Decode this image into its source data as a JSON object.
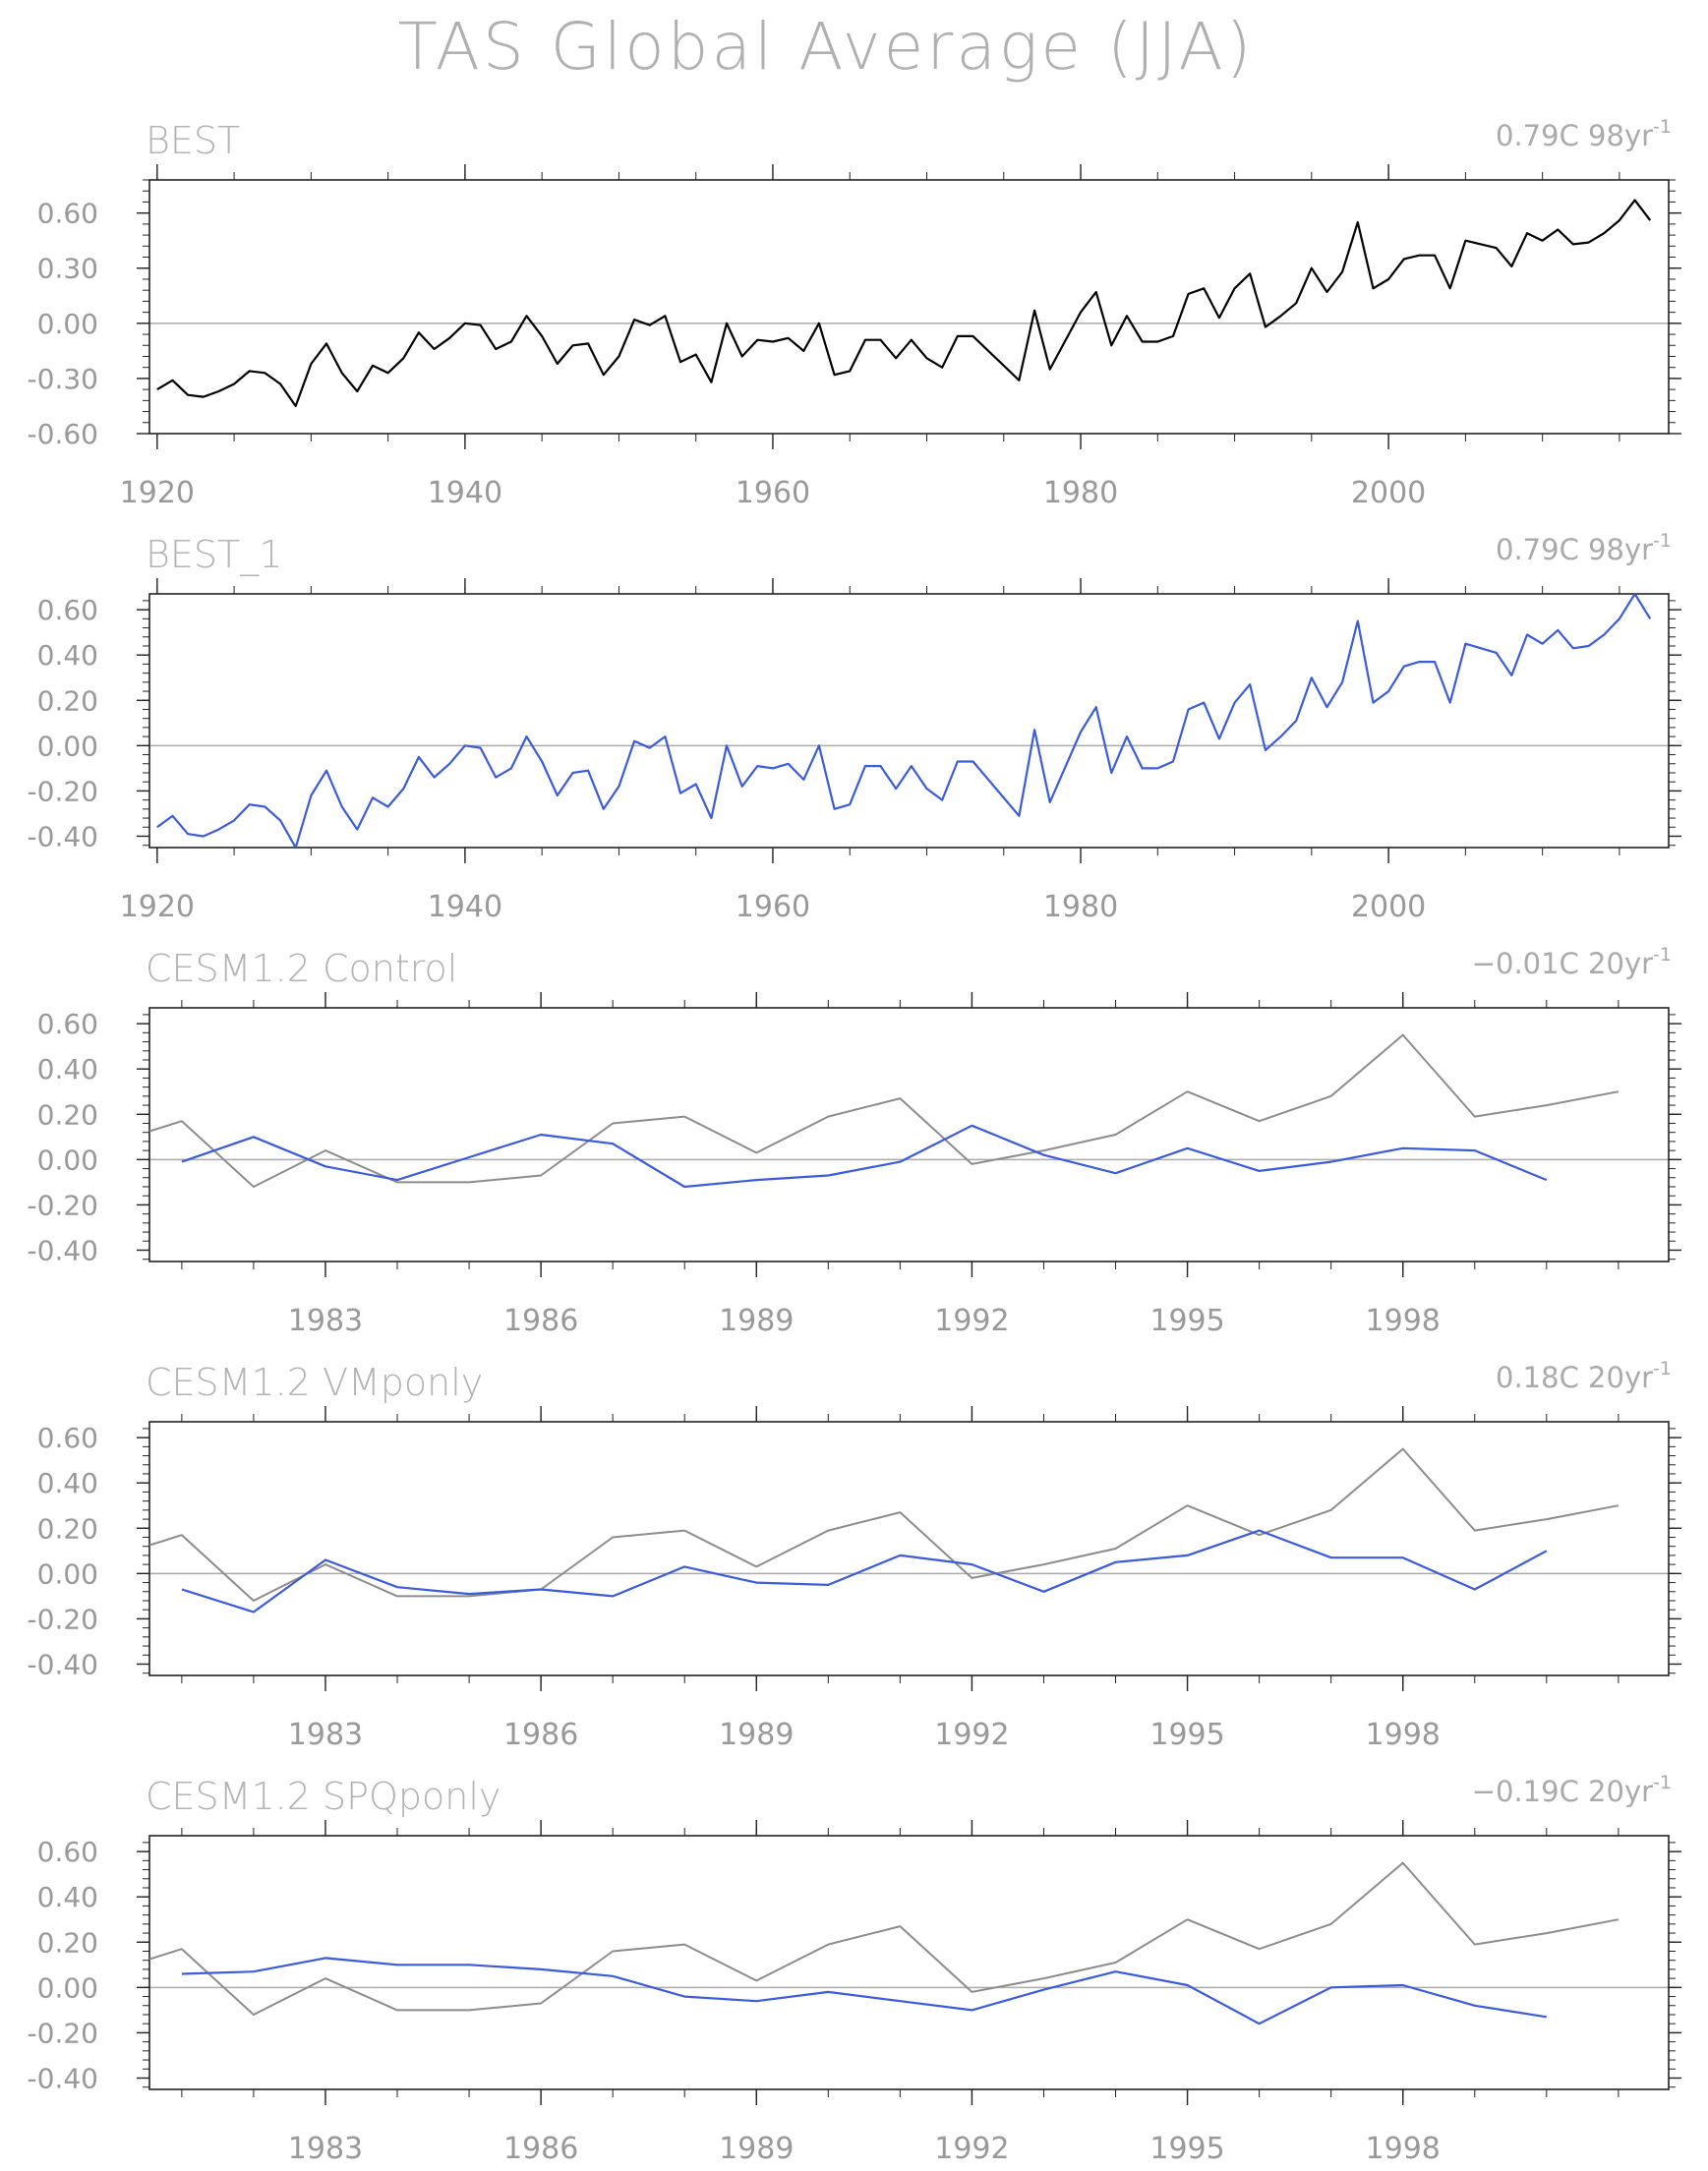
{
  "title": "TAS Global Average (JJA)",
  "colors": {
    "observed": "#000000",
    "observed_blue": "#3b5bdb",
    "reference_gray": "#8c8c8c",
    "model_blue": "#3b5bdb",
    "text": "#999999",
    "frame": "#222222",
    "zero_line": "#aaaaaa"
  },
  "chart_data": [
    {
      "type": "line",
      "panel_label": "BEST",
      "trend_label": "0.79C 98yr",
      "trend_exponent": "-1",
      "xlim": [
        1919.5,
        2018.2
      ],
      "ylim": [
        -0.6,
        0.78
      ],
      "yticks": [
        -0.6,
        -0.3,
        0.0,
        0.3,
        0.6
      ],
      "ytick_labels": [
        "-0.60",
        "-0.30",
        "0.00",
        "0.30",
        "0.60"
      ],
      "xticks": [
        1920,
        1940,
        1960,
        1980,
        2000
      ],
      "xtick_labels": [
        "1920",
        "1940",
        "1960",
        "1980",
        "2000"
      ],
      "zero_line": 0,
      "series": [
        {
          "color": "observed",
          "x": [
            1920,
            1921,
            1922,
            1923,
            1924,
            1925,
            1926,
            1927,
            1928,
            1929,
            1930,
            1931,
            1932,
            1933,
            1934,
            1935,
            1936,
            1937,
            1938,
            1939,
            1940,
            1941,
            1942,
            1943,
            1944,
            1945,
            1946,
            1947,
            1948,
            1949,
            1950,
            1951,
            1952,
            1953,
            1954,
            1955,
            1956,
            1957,
            1958,
            1959,
            1960,
            1961,
            1962,
            1963,
            1964,
            1965,
            1966,
            1967,
            1968,
            1969,
            1970,
            1971,
            1972,
            1973,
            1976,
            1977,
            1978,
            1980,
            1981,
            1982,
            1983,
            1984,
            1985,
            1986,
            1987,
            1988,
            1989,
            1990,
            1991,
            1992,
            1993,
            1994,
            1995,
            1996,
            1997,
            1998,
            1999,
            2000,
            2001,
            2002,
            2003,
            2004,
            2005,
            2007,
            2008,
            2009,
            2010,
            2011,
            2012,
            2013,
            2014,
            2015,
            2016,
            2017
          ],
          "y": [
            -0.36,
            -0.31,
            -0.39,
            -0.4,
            -0.37,
            -0.33,
            -0.26,
            -0.27,
            -0.33,
            -0.45,
            -0.22,
            -0.11,
            -0.27,
            -0.37,
            -0.23,
            -0.27,
            -0.19,
            -0.05,
            -0.14,
            -0.08,
            0.0,
            -0.01,
            -0.14,
            -0.1,
            0.04,
            -0.07,
            -0.22,
            -0.12,
            -0.11,
            -0.28,
            -0.18,
            0.02,
            -0.01,
            0.04,
            -0.21,
            -0.17,
            -0.32,
            0.0,
            -0.18,
            -0.09,
            -0.1,
            -0.08,
            -0.15,
            -0.0,
            -0.28,
            -0.26,
            -0.09,
            -0.09,
            -0.19,
            -0.09,
            -0.19,
            -0.24,
            -0.07,
            -0.07,
            -0.31,
            0.07,
            -0.25,
            0.06,
            0.17,
            -0.12,
            0.04,
            -0.1,
            -0.1,
            -0.07,
            0.16,
            0.19,
            0.03,
            0.19,
            0.27,
            -0.02,
            0.04,
            0.11,
            0.3,
            0.17,
            0.28,
            0.55,
            0.19,
            0.24,
            0.35,
            0.37,
            0.37,
            0.19,
            0.45,
            0.41,
            0.31,
            0.49,
            0.45,
            0.51,
            0.43,
            0.44,
            0.49,
            0.56,
            0.67,
            0.56
          ]
        }
      ]
    },
    {
      "type": "line",
      "panel_label": "BEST_1",
      "trend_label": "0.79C 98yr",
      "trend_exponent": "-1",
      "xlim": [
        1919.5,
        2018.2
      ],
      "ylim": [
        -0.45,
        0.67
      ],
      "yticks": [
        -0.4,
        -0.2,
        0.0,
        0.2,
        0.4,
        0.6
      ],
      "ytick_labels": [
        "-0.40",
        "-0.20",
        "0.00",
        "0.20",
        "0.40",
        "0.60"
      ],
      "xticks": [
        1920,
        1940,
        1960,
        1980,
        2000
      ],
      "xtick_labels": [
        "1920",
        "1940",
        "1960",
        "1980",
        "2000"
      ],
      "zero_line": 0,
      "series": [
        {
          "color": "observed_blue",
          "x": [
            1920,
            1921,
            1922,
            1923,
            1924,
            1925,
            1926,
            1927,
            1928,
            1929,
            1930,
            1931,
            1932,
            1933,
            1934,
            1935,
            1936,
            1937,
            1938,
            1939,
            1940,
            1941,
            1942,
            1943,
            1944,
            1945,
            1946,
            1947,
            1948,
            1949,
            1950,
            1951,
            1952,
            1953,
            1954,
            1955,
            1956,
            1957,
            1958,
            1959,
            1960,
            1961,
            1962,
            1963,
            1964,
            1965,
            1966,
            1967,
            1968,
            1969,
            1970,
            1971,
            1972,
            1973,
            1976,
            1977,
            1978,
            1980,
            1981,
            1982,
            1983,
            1984,
            1985,
            1986,
            1987,
            1988,
            1989,
            1990,
            1991,
            1992,
            1993,
            1994,
            1995,
            1996,
            1997,
            1998,
            1999,
            2000,
            2001,
            2002,
            2003,
            2004,
            2005,
            2007,
            2008,
            2009,
            2010,
            2011,
            2012,
            2013,
            2014,
            2015,
            2016,
            2017
          ],
          "y": [
            -0.36,
            -0.31,
            -0.39,
            -0.4,
            -0.37,
            -0.33,
            -0.26,
            -0.27,
            -0.33,
            -0.45,
            -0.22,
            -0.11,
            -0.27,
            -0.37,
            -0.23,
            -0.27,
            -0.19,
            -0.05,
            -0.14,
            -0.08,
            0.0,
            -0.01,
            -0.14,
            -0.1,
            0.04,
            -0.07,
            -0.22,
            -0.12,
            -0.11,
            -0.28,
            -0.18,
            0.02,
            -0.01,
            0.04,
            -0.21,
            -0.17,
            -0.32,
            0.0,
            -0.18,
            -0.09,
            -0.1,
            -0.08,
            -0.15,
            -0.0,
            -0.28,
            -0.26,
            -0.09,
            -0.09,
            -0.19,
            -0.09,
            -0.19,
            -0.24,
            -0.07,
            -0.07,
            -0.31,
            0.07,
            -0.25,
            0.06,
            0.17,
            -0.12,
            0.04,
            -0.1,
            -0.1,
            -0.07,
            0.16,
            0.19,
            0.03,
            0.19,
            0.27,
            -0.02,
            0.04,
            0.11,
            0.3,
            0.17,
            0.28,
            0.55,
            0.19,
            0.24,
            0.35,
            0.37,
            0.37,
            0.19,
            0.45,
            0.41,
            0.31,
            0.49,
            0.45,
            0.51,
            0.43,
            0.44,
            0.49,
            0.56,
            0.67,
            0.56
          ]
        }
      ]
    },
    {
      "type": "line",
      "panel_label": "CESM1.2 Control",
      "trend_label": "−0.01C 20yr",
      "trend_exponent": "-1",
      "xlim": [
        1980.55,
        2001.7
      ],
      "ylim": [
        -0.45,
        0.67
      ],
      "yticks": [
        -0.4,
        -0.2,
        0.0,
        0.2,
        0.4,
        0.6
      ],
      "ytick_labels": [
        "-0.40",
        "-0.20",
        "0.00",
        "0.20",
        "0.40",
        "0.60"
      ],
      "xticks": [
        1983,
        1986,
        1989,
        1992,
        1995,
        1998
      ],
      "xtick_labels": [
        "1983",
        "1986",
        "1989",
        "1992",
        "1995",
        "1998"
      ],
      "zero_line": 0,
      "series": [
        {
          "color": "reference_gray",
          "x": [
            1980.5,
            1981,
            1982,
            1983,
            1984,
            1985,
            1986,
            1987,
            1988,
            1989,
            1990,
            1991,
            1992,
            1993,
            1994,
            1995,
            1996,
            1997,
            1998,
            1999,
            2000,
            2001
          ],
          "y": [
            0.12,
            0.17,
            -0.12,
            0.04,
            -0.1,
            -0.1,
            -0.07,
            0.16,
            0.19,
            0.03,
            0.19,
            0.27,
            -0.02,
            0.04,
            0.11,
            0.3,
            0.17,
            0.28,
            0.55,
            0.19,
            0.24,
            0.3
          ]
        },
        {
          "color": "model_blue",
          "x": [
            1981,
            1982,
            1983,
            1984,
            1985,
            1986,
            1987,
            1988,
            1989,
            1990,
            1991,
            1992,
            1993,
            1994,
            1995,
            1996,
            1997,
            1998,
            1999,
            2000
          ],
          "y": [
            -0.01,
            0.1,
            -0.03,
            -0.09,
            0.01,
            0.11,
            0.07,
            -0.12,
            -0.09,
            -0.07,
            -0.01,
            0.15,
            0.02,
            -0.06,
            0.05,
            -0.05,
            -0.01,
            0.05,
            0.04,
            -0.09
          ]
        }
      ]
    },
    {
      "type": "line",
      "panel_label": "CESM1.2 VMponly",
      "trend_label": "0.18C 20yr",
      "trend_exponent": "-1",
      "xlim": [
        1980.55,
        2001.7
      ],
      "ylim": [
        -0.45,
        0.67
      ],
      "yticks": [
        -0.4,
        -0.2,
        0.0,
        0.2,
        0.4,
        0.6
      ],
      "ytick_labels": [
        "-0.40",
        "-0.20",
        "0.00",
        "0.20",
        "0.40",
        "0.60"
      ],
      "xticks": [
        1983,
        1986,
        1989,
        1992,
        1995,
        1998
      ],
      "xtick_labels": [
        "1983",
        "1986",
        "1989",
        "1992",
        "1995",
        "1998"
      ],
      "zero_line": 0,
      "series": [
        {
          "color": "reference_gray",
          "x": [
            1980.5,
            1981,
            1982,
            1983,
            1984,
            1985,
            1986,
            1987,
            1988,
            1989,
            1990,
            1991,
            1992,
            1993,
            1994,
            1995,
            1996,
            1997,
            1998,
            1999,
            2000,
            2001
          ],
          "y": [
            0.12,
            0.17,
            -0.12,
            0.04,
            -0.1,
            -0.1,
            -0.07,
            0.16,
            0.19,
            0.03,
            0.19,
            0.27,
            -0.02,
            0.04,
            0.11,
            0.3,
            0.17,
            0.28,
            0.55,
            0.19,
            0.24,
            0.3
          ]
        },
        {
          "color": "model_blue",
          "x": [
            1981,
            1982,
            1983,
            1984,
            1985,
            1986,
            1987,
            1988,
            1989,
            1990,
            1991,
            1992,
            1993,
            1994,
            1995,
            1996,
            1997,
            1998,
            1999,
            2000
          ],
          "y": [
            -0.07,
            -0.17,
            0.06,
            -0.06,
            -0.09,
            -0.07,
            -0.1,
            0.03,
            -0.04,
            -0.05,
            0.08,
            0.04,
            -0.08,
            0.05,
            0.08,
            0.19,
            0.07,
            0.07,
            -0.07,
            0.1
          ]
        }
      ]
    },
    {
      "type": "line",
      "panel_label": "CESM1.2 SPQponly",
      "trend_label": "−0.19C 20yr",
      "trend_exponent": "-1",
      "xlim": [
        1980.55,
        2001.7
      ],
      "ylim": [
        -0.45,
        0.67
      ],
      "yticks": [
        -0.4,
        -0.2,
        0.0,
        0.2,
        0.4,
        0.6
      ],
      "ytick_labels": [
        "-0.40",
        "-0.20",
        "0.00",
        "0.20",
        "0.40",
        "0.60"
      ],
      "xticks": [
        1983,
        1986,
        1989,
        1992,
        1995,
        1998
      ],
      "xtick_labels": [
        "1983",
        "1986",
        "1989",
        "1992",
        "1995",
        "1998"
      ],
      "zero_line": 0,
      "series": [
        {
          "color": "reference_gray",
          "x": [
            1980.5,
            1981,
            1982,
            1983,
            1984,
            1985,
            1986,
            1987,
            1988,
            1989,
            1990,
            1991,
            1992,
            1993,
            1994,
            1995,
            1996,
            1997,
            1998,
            1999,
            2000,
            2001
          ],
          "y": [
            0.12,
            0.17,
            -0.12,
            0.04,
            -0.1,
            -0.1,
            -0.07,
            0.16,
            0.19,
            0.03,
            0.19,
            0.27,
            -0.02,
            0.04,
            0.11,
            0.3,
            0.17,
            0.28,
            0.55,
            0.19,
            0.24,
            0.3
          ]
        },
        {
          "color": "model_blue",
          "x": [
            1981,
            1982,
            1983,
            1984,
            1985,
            1986,
            1987,
            1988,
            1989,
            1990,
            1991,
            1992,
            1993,
            1994,
            1995,
            1996,
            1997,
            1998,
            1999,
            2000
          ],
          "y": [
            0.06,
            0.07,
            0.13,
            0.1,
            0.1,
            0.08,
            0.05,
            -0.04,
            -0.06,
            -0.02,
            -0.06,
            -0.1,
            -0.01,
            0.07,
            0.01,
            -0.16,
            0.0,
            0.01,
            -0.08,
            -0.13
          ]
        }
      ]
    }
  ]
}
